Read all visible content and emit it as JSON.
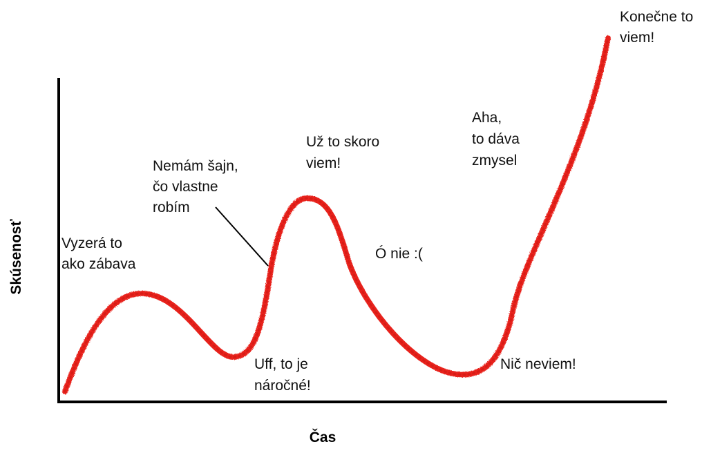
{
  "axes": {
    "x_title": "Čas",
    "y_title": "Skúsenosť"
  },
  "annotations": [
    {
      "id": "fun",
      "lines": [
        "Vyzerá to",
        "ako zábava"
      ]
    },
    {
      "id": "clueless",
      "lines": [
        "Nemám šajn,",
        "čo vlastne",
        "robím"
      ]
    },
    {
      "id": "almost",
      "lines": [
        "Už to skoro",
        "viem!"
      ]
    },
    {
      "id": "makes-sense",
      "lines": [
        "Aha,",
        "to dáva",
        "zmysel"
      ]
    },
    {
      "id": "finally",
      "lines": [
        "Konečne to",
        "viem!"
      ]
    },
    {
      "id": "oh-no",
      "lines": [
        "Ó nie :("
      ]
    },
    {
      "id": "hard",
      "lines": [
        "Uff, to je",
        "náročné!"
      ]
    },
    {
      "id": "know-nothing",
      "lines": [
        "Nič neviem!"
      ]
    }
  ],
  "colors": {
    "curve": "#e8231c",
    "axis": "#000000",
    "pointer": "#000000"
  }
}
